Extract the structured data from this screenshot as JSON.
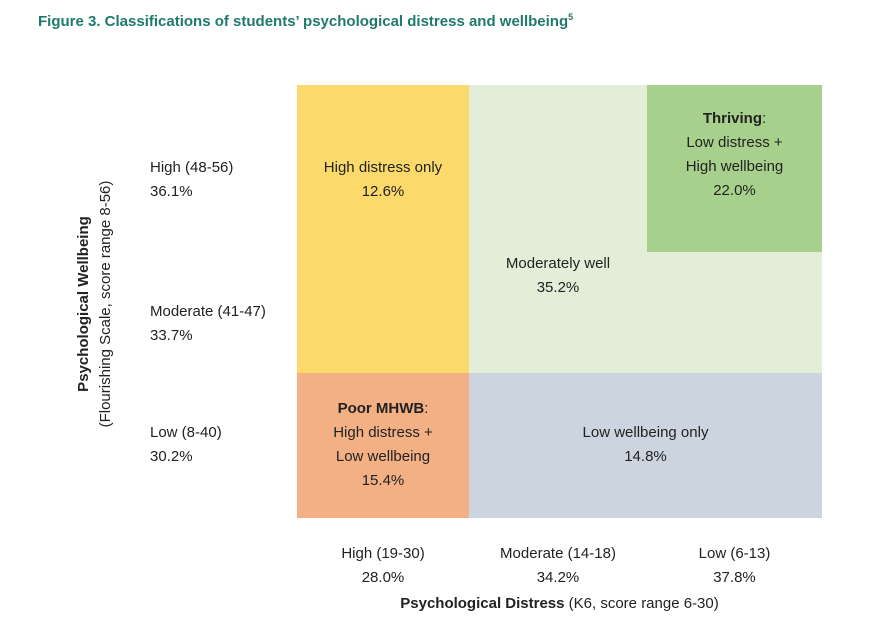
{
  "title": {
    "text": "Figure 3. Classifications of students’ psychological distress and wellbeing",
    "footnote": "5"
  },
  "colors": {
    "title": "#1f7a6c",
    "high_distress": "#fbd96a",
    "moderately_well": "#e3eed9",
    "thriving": "#a8d08d",
    "poor_mhwb": "#f3b085",
    "low_wellbeing": "#ccd4e0"
  },
  "chart_data": {
    "type": "table",
    "x_axis": {
      "title_bold": "Psychological Distress",
      "title_rest": " (K6, score range 6-30)",
      "categories": [
        {
          "label": "High (19-30)",
          "pct": "28.0%"
        },
        {
          "label": "Moderate (14-18)",
          "pct": "34.2%"
        },
        {
          "label": "Low (6-13)",
          "pct": "37.8%"
        }
      ]
    },
    "y_axis": {
      "title_bold": "Psychological Wellbeing",
      "title_rest": "(Flourishing Scale, score range 8-56)",
      "categories": [
        {
          "label": "High (48-56)",
          "pct": "36.1%"
        },
        {
          "label": "Moderate (41-47)",
          "pct": "33.7%"
        },
        {
          "label": "Low (8-40)",
          "pct": "30.2%"
        }
      ]
    },
    "groups": {
      "high_distress": {
        "line1": "High distress only",
        "pct": "12.6%",
        "value": 12.6
      },
      "moderately_well": {
        "line1": "Moderately well",
        "pct": "35.2%",
        "value": 35.2
      },
      "thriving": {
        "name": "Thriving",
        "colon": ":",
        "line2": "Low distress +",
        "line3": "High wellbeing",
        "pct": "22.0%",
        "value": 22.0
      },
      "poor_mhwb": {
        "name": "Poor MHWB",
        "colon": ":",
        "line2": "High distress +",
        "line3": "Low wellbeing",
        "pct": "15.4%",
        "value": 15.4
      },
      "low_wellbeing": {
        "line1": "Low wellbeing only",
        "pct": "14.8%",
        "value": 14.8
      }
    }
  }
}
